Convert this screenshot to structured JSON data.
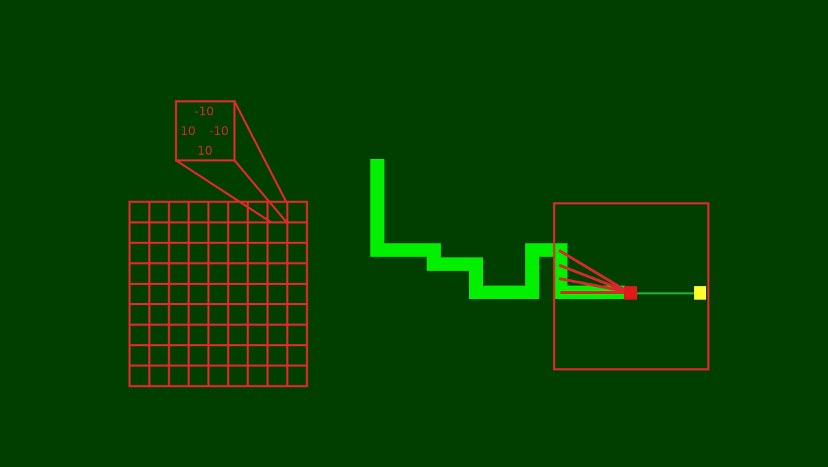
{
  "colors": {
    "background": "#003f00",
    "grid": "#e02a2a",
    "path": "#00f000",
    "ray": "#d42a2a",
    "sensor_line": "#28a83a",
    "agent": "#e01a1a",
    "goal": "#ffff30"
  },
  "neighbor_values": {
    "up": "-10",
    "left": "10",
    "right": "-10",
    "down": "10"
  },
  "grid": {
    "rows": 9,
    "cols": 9
  }
}
